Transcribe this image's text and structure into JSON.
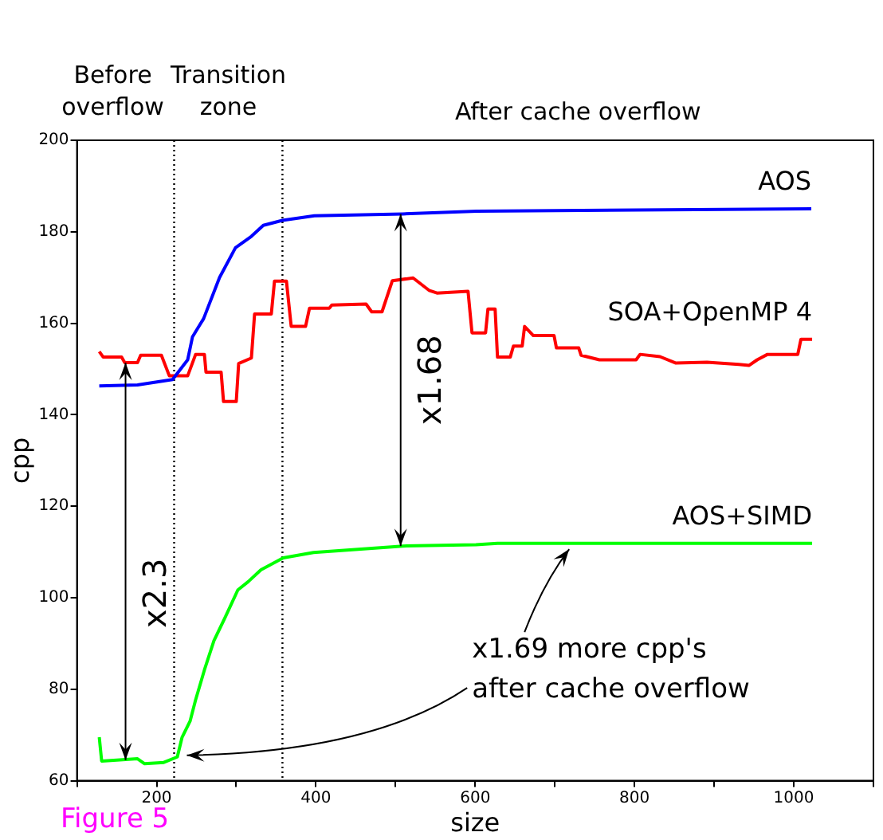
{
  "chart_data": {
    "type": "line",
    "xlabel": "size",
    "ylabel": "cpp",
    "xlim": [
      100,
      1100
    ],
    "ylim": [
      60,
      200
    ],
    "xticks": [
      {
        "value": 100,
        "label": null
      },
      200,
      {
        "value": 300,
        "label": null
      },
      400,
      {
        "value": 500,
        "label": null
      },
      600,
      {
        "value": 700,
        "label": null
      },
      800,
      {
        "value": 900,
        "label": null
      },
      1000,
      {
        "value": 1100,
        "label": null
      }
    ],
    "yticks": [
      60,
      80,
      100,
      120,
      140,
      160,
      180,
      200
    ],
    "grid": false,
    "legend": false,
    "marker": "none",
    "line_style": "solid",
    "series": [
      {
        "name": "AOS",
        "color": "#0000ff",
        "x": [
          128,
          176,
          220,
          239,
          245,
          259,
          279,
          299,
          319,
          334,
          358,
          398,
          509,
          602,
          1022
        ],
        "values": [
          146.3,
          146.5,
          147.7,
          152,
          157,
          161,
          170,
          176.5,
          179,
          181.4,
          182.5,
          183.5,
          183.9,
          184.5,
          185
        ]
      },
      {
        "name": "SOA+OpenMP 4",
        "color": "#ff0000",
        "x": [
          128,
          133,
          156,
          160,
          176,
          180,
          206,
          216,
          239,
          249,
          260,
          262,
          281,
          284,
          300,
          303,
          319,
          323,
          344,
          348,
          363,
          369,
          387,
          392,
          417,
          420,
          463,
          470,
          483,
          496,
          522,
          542,
          552,
          591,
          596,
          613,
          616,
          625,
          628,
          644,
          648,
          659,
          662,
          673,
          699,
          702,
          730,
          733,
          756,
          802,
          807,
          832,
          852,
          891,
          931,
          944,
          954,
          967,
          1005,
          1009,
          1023
        ],
        "values": [
          153.8,
          152.6,
          152.6,
          151.4,
          151.4,
          153,
          153,
          148.5,
          148.5,
          153.2,
          153.2,
          149.3,
          149.3,
          142.9,
          142.9,
          151.2,
          152.4,
          162,
          162,
          169.2,
          169.2,
          159.3,
          159.3,
          163.3,
          163.3,
          164,
          164.2,
          162.5,
          162.5,
          169.3,
          169.9,
          167.2,
          166.6,
          167,
          157.9,
          157.9,
          163.1,
          163.1,
          152.6,
          152.6,
          155,
          155,
          159.3,
          157.3,
          157.3,
          154.6,
          154.6,
          153,
          152,
          152,
          153.2,
          152.7,
          151.3,
          151.5,
          151,
          150.8,
          152,
          153.2,
          153.2,
          156.5,
          156.5
        ]
      },
      {
        "name": "AOS+SIMD",
        "color": "#00ff00",
        "x": [
          128,
          131,
          150,
          176,
          185,
          209,
          226,
          232,
          242,
          249,
          260,
          272,
          285,
          302,
          315,
          331,
          359,
          397,
          509,
          601,
          628,
          1023
        ],
        "values": [
          69.5,
          64.3,
          64.5,
          64.8,
          63.7,
          64,
          65.2,
          69.5,
          73,
          77.7,
          84.2,
          90.6,
          95.3,
          101.7,
          103.5,
          106.1,
          108.7,
          109.9,
          111.3,
          111.6,
          111.9,
          111.9
        ]
      }
    ],
    "ref_lines": [
      {
        "axis": "x",
        "value": 222,
        "color": "#000000",
        "line_style": "dotted"
      },
      {
        "axis": "x",
        "value": 358,
        "color": "#000000",
        "line_style": "dotted"
      }
    ],
    "annotations": [
      "Before\noverflow",
      "Transition\nzone",
      "After cache overflow",
      "Figure 5",
      "x2.3",
      "x1.68",
      {
        "text": "x1.69 more cpp's\nafter cache overflow",
        "x": 720,
        "y": 112
      }
    ]
  }
}
